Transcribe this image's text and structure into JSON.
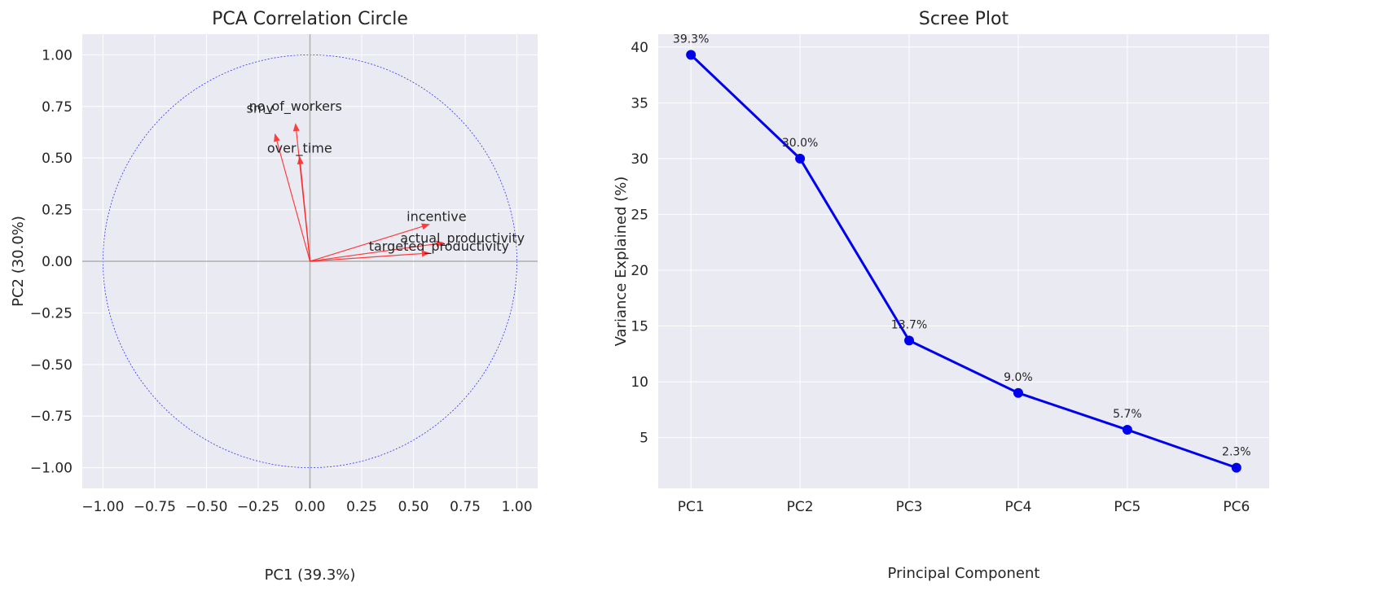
{
  "chart_data": [
    {
      "type": "scatter",
      "subtype": "correlation-circle",
      "title": "PCA Correlation Circle",
      "xlabel": "PC1 (39.3%)",
      "ylabel": "PC2 (30.0%)",
      "xlim": [
        -1.1,
        1.1
      ],
      "ylim": [
        -1.1,
        1.1
      ],
      "xticks": [
        "−1.00",
        "−0.75",
        "−0.50",
        "−0.25",
        "0.00",
        "0.25",
        "0.50",
        "0.75",
        "1.00"
      ],
      "yticks": [
        "−1.00",
        "−0.75",
        "−0.50",
        "−0.25",
        "0.00",
        "0.25",
        "0.50",
        "0.75",
        "1.00"
      ],
      "tick_values": [
        -1.0,
        -0.75,
        -0.5,
        -0.25,
        0.0,
        0.25,
        0.5,
        0.75,
        1.0
      ],
      "grid": true,
      "unit_circle": true,
      "vectors": [
        {
          "name": "no_of_workers",
          "x": -0.07,
          "y": 0.67
        },
        {
          "name": "smv",
          "x": -0.17,
          "y": 0.62
        },
        {
          "name": "over_time",
          "x": -0.05,
          "y": 0.51
        },
        {
          "name": "incentive",
          "x": 0.58,
          "y": 0.18
        },
        {
          "name": "actual_productivity",
          "x": 0.65,
          "y": 0.09
        },
        {
          "name": "targeted_productivity",
          "x": 0.58,
          "y": 0.04
        }
      ],
      "colors": {
        "arrow": "#ff2020",
        "circle": "#3030ff",
        "axis_lines": "#b0b0b0"
      }
    },
    {
      "type": "line",
      "title": "Scree Plot",
      "xlabel": "Principal Component",
      "ylabel": "Variance Explained (%)",
      "categories": [
        "PC1",
        "PC2",
        "PC3",
        "PC4",
        "PC5",
        "PC6"
      ],
      "values": [
        39.3,
        30.0,
        13.7,
        9.0,
        5.7,
        2.3
      ],
      "data_labels": [
        "39.3%",
        "30.0%",
        "13.7%",
        "9.0%",
        "5.7%",
        "2.3%"
      ],
      "yticks": [
        "5",
        "10",
        "15",
        "20",
        "25",
        "30",
        "35",
        "40"
      ],
      "tick_values": [
        5,
        10,
        15,
        20,
        25,
        30,
        35,
        40
      ],
      "ylim": [
        0.45,
        41.15
      ],
      "grid": true,
      "colors": {
        "line": "#0000ee"
      }
    }
  ],
  "style": {
    "panel_bg": "#eaeaf2",
    "grid": "#ffffff",
    "text": "#262626"
  }
}
